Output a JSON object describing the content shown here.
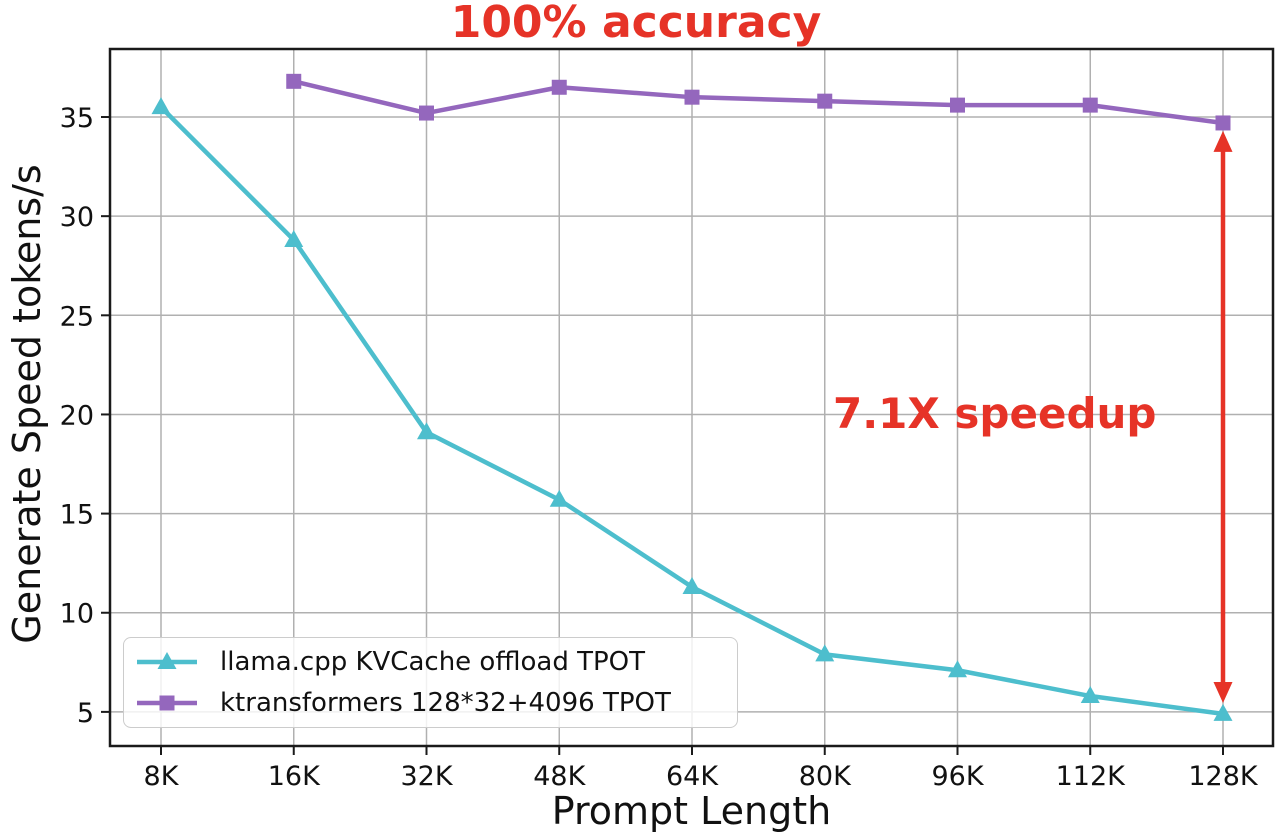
{
  "chart_data": {
    "type": "line",
    "title": "100% accuracy",
    "xlabel": "Prompt Length",
    "ylabel": "Generate Speed tokens/s",
    "categories": [
      "8K",
      "16K",
      "32K",
      "48K",
      "64K",
      "80K",
      "96K",
      "112K",
      "128K"
    ],
    "yticks": [
      5,
      10,
      15,
      20,
      25,
      30,
      35
    ],
    "ylim": [
      3.28,
      38.43
    ],
    "grid": true,
    "legend_position": "lower left",
    "series": [
      {
        "name": "llama.cpp KVCache offload TPOT",
        "marker": "triangle-up",
        "color": "#4dbecd",
        "values": [
          35.5,
          28.8,
          19.1,
          15.7,
          11.3,
          7.9,
          7.1,
          5.8,
          4.9
        ]
      },
      {
        "name": "ktransformers 128*32+4096 TPOT",
        "marker": "square",
        "color": "#9467bd",
        "values": [
          null,
          36.8,
          35.2,
          36.5,
          36.0,
          35.8,
          35.6,
          35.6,
          34.7
        ]
      }
    ],
    "annotation": {
      "text": "7.1X speedup",
      "color": "#e63327",
      "arrow": {
        "category": "128K",
        "from_value": 34.3,
        "to_value": 5.45
      }
    }
  },
  "colors": {
    "grid": "#b0b0b0",
    "axis": "#1a1a1a",
    "text": "#111111",
    "accent_red": "#e63327"
  }
}
